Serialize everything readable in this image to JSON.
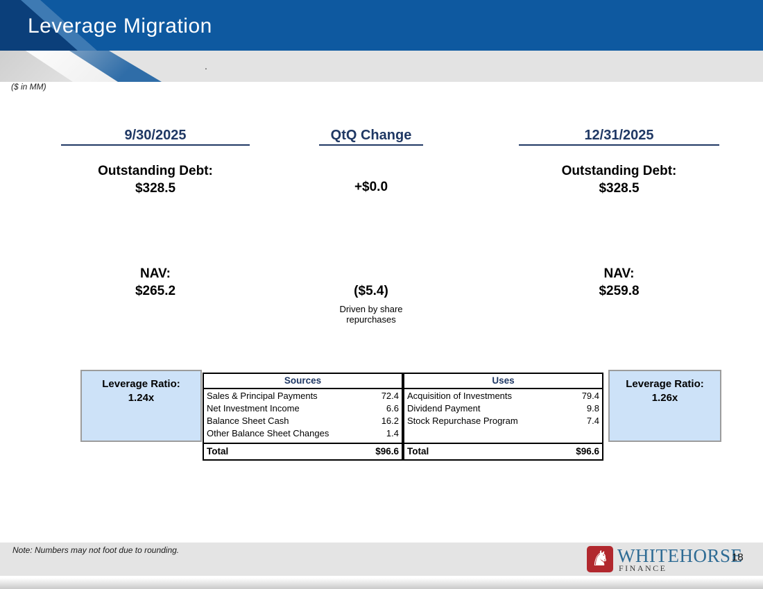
{
  "slide": {
    "title": "Leverage Migration",
    "units_label": "($ in MM)",
    "stray_dot": ".",
    "note": "Note: Numbers may not foot due to rounding.",
    "page_number": "18"
  },
  "flow": {
    "col_start": {
      "header": "9/30/2025",
      "debt_label": "Outstanding Debt:",
      "debt_value": "$328.5",
      "nav_label": "NAV:",
      "nav_value": "$265.2",
      "leverage_label": "Leverage Ratio:",
      "leverage_value": "1.24x"
    },
    "col_change": {
      "header": "QtQ Change",
      "debt_change": "+$0.0",
      "nav_change": "($5.4)",
      "nav_change_note": "Driven by share repurchases"
    },
    "col_end": {
      "header": "12/31/2025",
      "debt_label": "Outstanding Debt:",
      "debt_value": "$328.5",
      "nav_label": "NAV:",
      "nav_value": "$259.8",
      "leverage_label": "Leverage Ratio:",
      "leverage_value": "1.26x"
    }
  },
  "table": {
    "sources": {
      "header": "Sources",
      "rows": [
        {
          "label": "Sales & Principal Payments",
          "value": "72.4"
        },
        {
          "label": "Net Investment Income",
          "value": "6.6"
        },
        {
          "label": "Balance Sheet Cash",
          "value": "16.2"
        },
        {
          "label": "Other Balance Sheet Changes",
          "value": "1.4"
        }
      ],
      "total_label": "Total",
      "total_value": "$96.6"
    },
    "uses": {
      "header": "Uses",
      "rows": [
        {
          "label": "Acquisition of Investments",
          "value": "79.4"
        },
        {
          "label": "Dividend Payment",
          "value": "9.8"
        },
        {
          "label": "Stock Repurchase Program",
          "value": "7.4"
        },
        {
          "label": "",
          "value": ""
        }
      ],
      "total_label": "Total",
      "total_value": "$96.6"
    }
  },
  "logo": {
    "horse_glyph": "♞",
    "brand": "WHITEHORSE",
    "division": "FINANCE"
  },
  "colors": {
    "header_blue": "#0E59A0",
    "heading_navy": "#1F3864",
    "leverage_box_fill": "#CDE2F8",
    "leverage_box_border": "#9C9C9C",
    "strip_gray": "#E3E3E3",
    "logo_red": "#B1282E",
    "brand_blue": "#2E6B94"
  }
}
